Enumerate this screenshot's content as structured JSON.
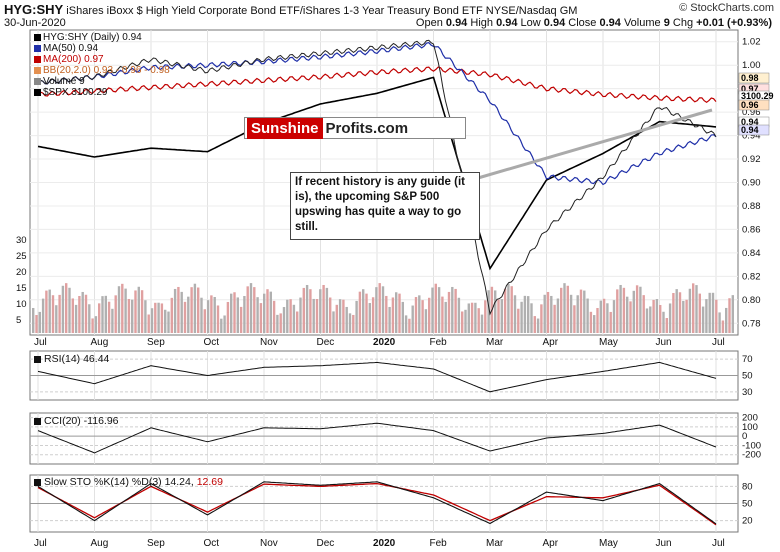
{
  "header": {
    "ticker": "HYG:SHY",
    "description": "iShares iBoxx $ High Yield Corporate Bond ETF/iShares 1-3 Year Treasury Bond ETF",
    "exchange": "NYSE/Nasdaq GM",
    "date": "30-Jun-2020",
    "brand": "© StockCharts.com",
    "open_label": "Open",
    "open": "0.94",
    "high_label": "High",
    "high": "0.94",
    "low_label": "Low",
    "low": "0.94",
    "close_label": "Close",
    "close": "0.94",
    "volume_label": "Volume",
    "volume": "9",
    "chg_label": "Chg",
    "chg": "+0.01 (+0.93%)"
  },
  "legend": [
    {
      "text": "HYG:SHY (Daily) 0.94",
      "color": "#000000"
    },
    {
      "text": "MA(50) 0.94",
      "color": "#1f2fa8"
    },
    {
      "text": "MA(200) 0.97",
      "color": "#c00000"
    },
    {
      "text": "BB(20,2.0) 0.93 - 0.96 - 0.98",
      "color": "#e39050"
    },
    {
      "text": "Volume 9",
      "color": "#888888"
    },
    {
      "text": "$SPX 3100.29",
      "color": "#000000"
    }
  ],
  "logo": {
    "part1": "Sunshine",
    "part2": "Profits.com"
  },
  "callout": "If recent history is any guide (it is), the upcoming S&P 500 upswing has quite a way to go still.",
  "indicators": {
    "rsi_label": "RSI(14) 46.44",
    "cci_label": "CCI(20) -116.96",
    "sto_label_a": "Slow STO %K(14) %D(3) 14.24,",
    "sto_label_b": "12.69"
  },
  "price_badges": [
    "0.98",
    "0.97",
    "3100.29",
    "0.96",
    "0.94",
    "0.94"
  ],
  "x_axis_labels": [
    "Jul",
    "Aug",
    "Sep",
    "Oct",
    "Nov",
    "Dec",
    "2020",
    "Feb",
    "Mar",
    "Apr",
    "May",
    "Jun",
    "Jul"
  ],
  "chart_data": [
    {
      "type": "line",
      "title": "HYG:SHY (Daily)",
      "x": [
        "Jul",
        "Aug",
        "Sep",
        "Oct",
        "Nov",
        "Dec",
        "2020",
        "Feb",
        "Mar",
        "Apr",
        "May",
        "Jun",
        "Jul"
      ],
      "y_ticks": [
        "1.02",
        "1.00",
        "0.98",
        "0.96",
        "0.94",
        "0.92",
        "0.90",
        "0.88",
        "0.86",
        "0.84",
        "0.82",
        "0.80",
        "0.78"
      ],
      "ylim": [
        0.77,
        1.03
      ],
      "volume_ticks": [
        "30",
        "25",
        "20",
        "15",
        "10",
        "5"
      ],
      "series": [
        {
          "name": "HYG:SHY",
          "values": [
            0.985,
            0.99,
            1.005,
            0.995,
            1.005,
            1.01,
            1.015,
            1.02,
            0.79,
            0.86,
            0.905,
            0.965,
            0.94
          ]
        },
        {
          "name": "MA(50)",
          "values": [
            0.985,
            0.99,
            0.998,
            1.0,
            1.003,
            1.007,
            1.012,
            1.018,
            0.97,
            0.905,
            0.9,
            0.925,
            0.94
          ]
        },
        {
          "name": "MA(200)",
          "values": [
            0.975,
            0.978,
            0.981,
            0.984,
            0.987,
            0.99,
            0.994,
            0.997,
            0.992,
            0.98,
            0.975,
            0.972,
            0.97
          ]
        },
        {
          "name": "$SPX",
          "values": [
            2990,
            2930,
            2980,
            2960,
            3120,
            3230,
            3290,
            3380,
            2300,
            2800,
            2950,
            3130,
            3100.29
          ]
        }
      ]
    },
    {
      "type": "line",
      "title": "RSI(14)",
      "x": [
        "Jul",
        "Aug",
        "Sep",
        "Oct",
        "Nov",
        "Dec",
        "2020",
        "Feb",
        "Mar",
        "Apr",
        "May",
        "Jun",
        "Jul"
      ],
      "y_ticks": [
        "70",
        "50",
        "30"
      ],
      "ylim": [
        20,
        80
      ],
      "values": [
        55,
        40,
        62,
        50,
        60,
        62,
        66,
        58,
        30,
        45,
        55,
        66,
        46.44
      ]
    },
    {
      "type": "line",
      "title": "CCI(20)",
      "x": [
        "Jul",
        "Aug",
        "Sep",
        "Oct",
        "Nov",
        "Dec",
        "2020",
        "Feb",
        "Mar",
        "Apr",
        "May",
        "Jun",
        "Jul"
      ],
      "y_ticks": [
        "200",
        "100",
        "0",
        "-100",
        "-200"
      ],
      "ylim": [
        -300,
        250
      ],
      "values": [
        60,
        -180,
        90,
        -60,
        90,
        80,
        140,
        60,
        -160,
        -20,
        30,
        120,
        -116.96
      ]
    },
    {
      "type": "line",
      "title": "Slow STO %K(14) %D(3)",
      "x": [
        "Jul",
        "Aug",
        "Sep",
        "Oct",
        "Nov",
        "Dec",
        "2020",
        "Feb",
        "Mar",
        "Apr",
        "May",
        "Jun",
        "Jul"
      ],
      "y_ticks": [
        "80",
        "50",
        "20"
      ],
      "ylim": [
        0,
        100
      ],
      "series": [
        {
          "name": "%K",
          "values": [
            80,
            20,
            85,
            30,
            88,
            82,
            88,
            60,
            15,
            70,
            55,
            85,
            14.24
          ]
        },
        {
          "name": "%D",
          "values": [
            78,
            25,
            80,
            35,
            84,
            80,
            85,
            65,
            20,
            62,
            60,
            82,
            12.69
          ]
        }
      ]
    }
  ]
}
